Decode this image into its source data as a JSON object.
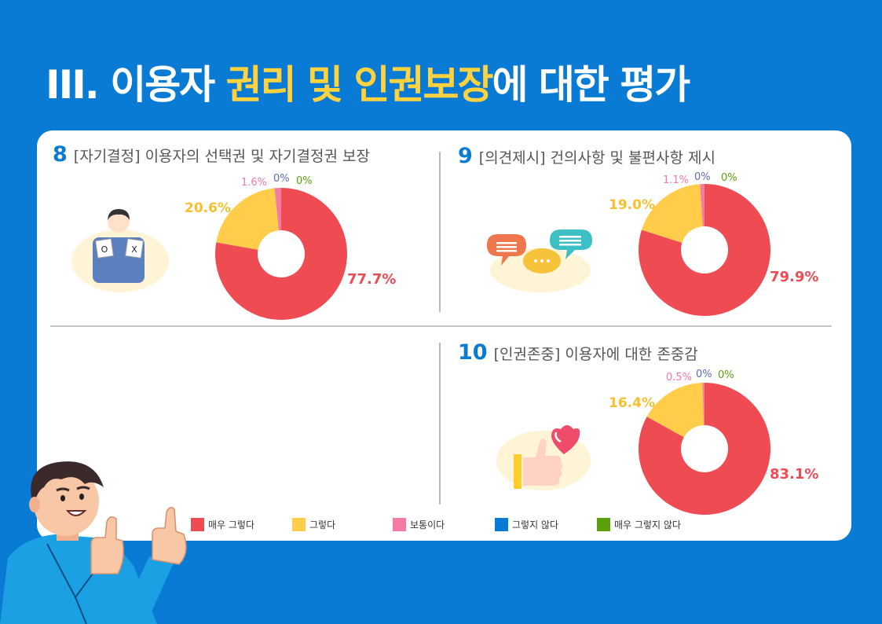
{
  "title": {
    "prefix": "III. 이용자 ",
    "highlight": "권리 및 인권보장",
    "suffix": "에 대한  평가"
  },
  "colors": {
    "background": "#0a7bd4",
    "accent": "#ffd23f",
    "very_agree": "#ef4b52",
    "agree": "#ffcd4a",
    "neutral": "#f57ba2",
    "disagree": "#0a7bd4",
    "very_disagree": "#5aa00a"
  },
  "legend": [
    {
      "label": "매우 그렇다",
      "color": "#ef4b52"
    },
    {
      "label": "그렇다",
      "color": "#ffcd4a"
    },
    {
      "label": "보통이다",
      "color": "#f57ba2"
    },
    {
      "label": "그렇지 않다",
      "color": "#0a7bd4"
    },
    {
      "label": "매우 그렇지 않다",
      "color": "#5aa00a"
    }
  ],
  "questions": [
    {
      "num": "8",
      "text": "[자기결정] 이용자의 선택권 및 자기결정권 보장",
      "icon": "person-ox-cards-icon"
    },
    {
      "num": "9",
      "text": "[의견제시] 건의사항 및 불편사항 제시",
      "icon": "speech-bubbles-icon"
    },
    {
      "num": "10",
      "text": "[인권존중] 이용자에 대한 존중감",
      "icon": "thumbs-up-heart-icon"
    }
  ],
  "chart_data": [
    {
      "type": "pie",
      "title": "[자기결정] 이용자의 선택권 및 자기결정권 보장",
      "categories": [
        "매우 그렇다",
        "그렇다",
        "보통이다",
        "그렇지 않다",
        "매우 그렇지 않다"
      ],
      "values": [
        77.7,
        20.6,
        1.6,
        0,
        0
      ],
      "labels": [
        "77.7%",
        "20.6%",
        "1.6%",
        "0%",
        "0%"
      ],
      "donut": true
    },
    {
      "type": "pie",
      "title": "[의견제시] 건의사항 및 불편사항 제시",
      "categories": [
        "매우 그렇다",
        "그렇다",
        "보통이다",
        "그렇지 않다",
        "매우 그렇지 않다"
      ],
      "values": [
        79.9,
        19.0,
        1.1,
        0,
        0
      ],
      "labels": [
        "79.9%",
        "19.0%",
        "1.1%",
        "0%",
        "0%"
      ],
      "donut": true
    },
    {
      "type": "pie",
      "title": "[인권존중] 이용자에 대한 존중감",
      "categories": [
        "매우 그렇다",
        "그렇다",
        "보통이다",
        "그렇지 않다",
        "매우 그렇지 않다"
      ],
      "values": [
        83.1,
        16.4,
        0.5,
        0,
        0
      ],
      "labels": [
        "83.1%",
        "16.4%",
        "0.5%",
        "0%",
        "0%"
      ],
      "donut": true
    }
  ]
}
